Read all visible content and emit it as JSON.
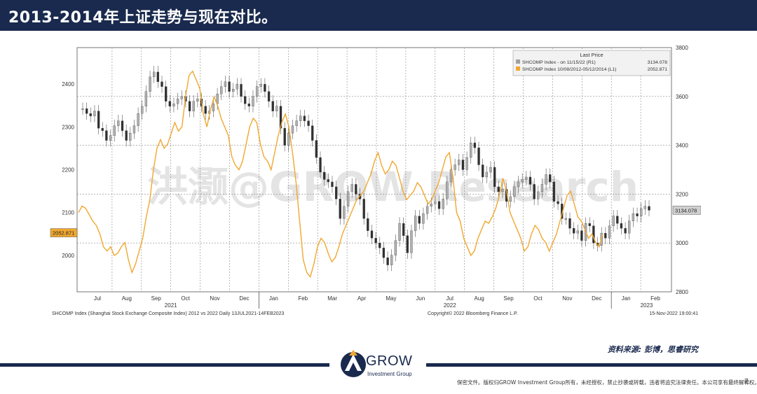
{
  "header": {
    "title": "2013-2014年上证走势与现在对比。"
  },
  "source": "资料来源: 彭博，思睿研究",
  "logo": {
    "name": "GROW",
    "subtitle": "Investment Group"
  },
  "footer": {
    "disclaimer": "保密文件。版权归GROW Investment Group所有，未经授权，禁止抄袭或转载，违者将追究法律责任。本公司享有最终解释权。",
    "page": "7"
  },
  "colors": {
    "navy": "#1a2a4e",
    "orange": "#f0a830",
    "candle_up": "#b0b0b0",
    "candle_down": "#303030"
  },
  "chart_data": {
    "type": "line",
    "watermark": "洪灏@GROW Research",
    "legend": {
      "title": "Last Price",
      "entries": [
        {
          "label": "SHCOMP Index - on 11/15/22 (R1)",
          "value": "3134.078"
        },
        {
          "label": "SHCOMP Index 10/08/2012-05/12/2014 (L1)",
          "value": "2052.871"
        }
      ]
    },
    "left_axis": {
      "ticks": [
        2000,
        2100,
        2200,
        2300,
        2400
      ],
      "ylim": [
        1915,
        2485
      ],
      "last_value_label": "2052.871",
      "last_value": 2052.871
    },
    "right_axis": {
      "ticks": [
        2800,
        3000,
        3200,
        3400,
        3600,
        3800
      ],
      "ylim": [
        2800,
        3800
      ],
      "last_value_label": "3134.078",
      "last_value": 3134.078
    },
    "x_axis": {
      "months": [
        "Jul",
        "Aug",
        "Sep",
        "Oct",
        "Nov",
        "Dec",
        "Jan",
        "Feb",
        "Mar",
        "Apr",
        "May",
        "Jun",
        "Jul",
        "Aug",
        "Sep",
        "Oct",
        "Nov",
        "Dec",
        "Jan",
        "Feb"
      ],
      "years": [
        "2021",
        "2022",
        "2023"
      ]
    },
    "bottom_left_caption": "SHCOMP Index (Shanghai Stock Exchange Composite Index) 2012 vs 2022  Daily 13JUL2021-14FEB2023",
    "bottom_mid_caption": "Copyright© 2022 Bloomberg Finance L.P.",
    "bottom_right_caption": "15-Nov-2022 19:00:41",
    "series": [
      {
        "name": "SHCOMP Index 10/08/2012-05/12/2014 (L1)",
        "axis": "left",
        "color": "#f0a830",
        "values": [
          2100,
          2115,
          2110,
          2095,
          2080,
          2070,
          2050,
          2020,
          2010,
          2020,
          2000,
          2005,
          2020,
          2030,
          1990,
          1960,
          1980,
          2010,
          2040,
          2090,
          2130,
          2200,
          2250,
          2270,
          2250,
          2260,
          2285,
          2310,
          2290,
          2300,
          2370,
          2420,
          2430,
          2410,
          2390,
          2330,
          2300,
          2340,
          2370,
          2350,
          2320,
          2300,
          2280,
          2230,
          2210,
          2200,
          2220,
          2260,
          2300,
          2320,
          2310,
          2260,
          2230,
          2220,
          2200,
          2240,
          2280,
          2310,
          2330,
          2300,
          2240,
          2170,
          2080,
          1990,
          1960,
          1950,
          1980,
          2020,
          2040,
          2030,
          2005,
          1985,
          1995,
          2020,
          2050,
          2070,
          2090,
          2110,
          2130,
          2140,
          2150,
          2170,
          2190,
          2220,
          2240,
          2210,
          2190,
          2200,
          2220,
          2210,
          2180,
          2150,
          2130,
          2140,
          2150,
          2170,
          2160,
          2140,
          2120,
          2130,
          2150,
          2170,
          2200,
          2230,
          2240,
          2180,
          2100,
          2080,
          2040,
          2020,
          2000,
          2010,
          2040,
          2060,
          2080,
          2075,
          2090,
          2110,
          2140,
          2180,
          2150,
          2100,
          2080,
          2060,
          2040,
          2010,
          2020,
          2050,
          2070,
          2060,
          2040,
          2030,
          2010,
          2030,
          2050,
          2080,
          2110,
          2140,
          2150,
          2120,
          2090,
          2080,
          2060,
          2040,
          2050,
          2030,
          2020,
          2050
        ]
      },
      {
        "name": "SHCOMP Index - on 11/15/22 (R1)",
        "axis": "right",
        "style": "candlestick",
        "values": [
          3550,
          3530,
          3520,
          3540,
          3470,
          3460,
          3420,
          3440,
          3480,
          3500,
          3460,
          3420,
          3450,
          3480,
          3530,
          3560,
          3620,
          3680,
          3700,
          3660,
          3640,
          3580,
          3560,
          3570,
          3590,
          3600,
          3580,
          3540,
          3580,
          3590,
          3560,
          3530,
          3540,
          3570,
          3610,
          3640,
          3660,
          3620,
          3630,
          3650,
          3600,
          3570,
          3560,
          3600,
          3640,
          3650,
          3620,
          3580,
          3540,
          3560,
          3470,
          3400,
          3450,
          3480,
          3500,
          3520,
          3500,
          3480,
          3420,
          3350,
          3290,
          3260,
          3250,
          3230,
          3180,
          3100,
          3150,
          3210,
          3240,
          3200,
          3180,
          3100,
          3050,
          3020,
          3000,
          2980,
          2940,
          2910,
          2950,
          3010,
          3080,
          3030,
          2960,
          3050,
          3110,
          3080,
          3120,
          3150,
          3160,
          3170,
          3140,
          3180,
          3250,
          3300,
          3320,
          3340,
          3300,
          3350,
          3410,
          3390,
          3320,
          3270,
          3290,
          3310,
          3230,
          3210,
          3220,
          3170,
          3190,
          3230,
          3250,
          3260,
          3270,
          3240,
          3180,
          3210,
          3240,
          3280,
          3250,
          3170,
          3160,
          3100,
          3100,
          3060,
          3040,
          3050,
          3010,
          3080,
          3070,
          3000,
          2990,
          3040,
          3020,
          3070,
          3110,
          3080,
          3060,
          3040,
          3090,
          3120,
          3110,
          3140,
          3150,
          3134
        ]
      }
    ]
  }
}
